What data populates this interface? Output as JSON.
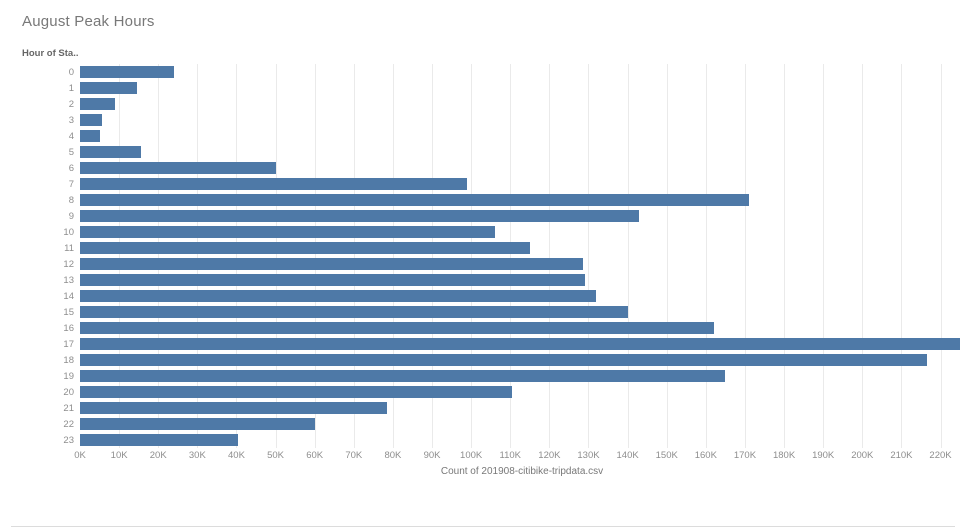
{
  "title": "August Peak Hours",
  "row_axis_header": "Hour of Sta..",
  "colors": {
    "bar": "#4e79a7",
    "gridline": "#eaeaea",
    "title_text": "#787878",
    "tick_text": "#8e8e8e",
    "divider": "#dcdcdc"
  },
  "chart_data": {
    "type": "bar",
    "orientation": "horizontal",
    "title": "August Peak Hours",
    "categories": [
      "0",
      "1",
      "2",
      "3",
      "4",
      "5",
      "6",
      "7",
      "8",
      "9",
      "10",
      "11",
      "12",
      "13",
      "14",
      "15",
      "16",
      "17",
      "18",
      "19",
      "20",
      "21",
      "22",
      "23"
    ],
    "values": [
      24000,
      14500,
      9000,
      5500,
      5000,
      15500,
      50000,
      99000,
      171000,
      143000,
      106000,
      115000,
      128500,
      129000,
      132000,
      140000,
      162000,
      225000,
      216500,
      165000,
      110500,
      78500,
      60000,
      40500
    ],
    "category_axis_label": "Hour of Sta..",
    "value_axis_label": "Count of 201908-citibike-tripdata.csv",
    "value_axis": {
      "min": 0,
      "max": 226000,
      "tick_interval": 10000,
      "tick_labels": [
        "0K",
        "10K",
        "20K",
        "30K",
        "40K",
        "50K",
        "60K",
        "70K",
        "80K",
        "90K",
        "100K",
        "110K",
        "120K",
        "130K",
        "140K",
        "150K",
        "160K",
        "170K",
        "180K",
        "190K",
        "200K",
        "210K",
        "220K"
      ]
    },
    "grid": true,
    "legend": "none"
  }
}
